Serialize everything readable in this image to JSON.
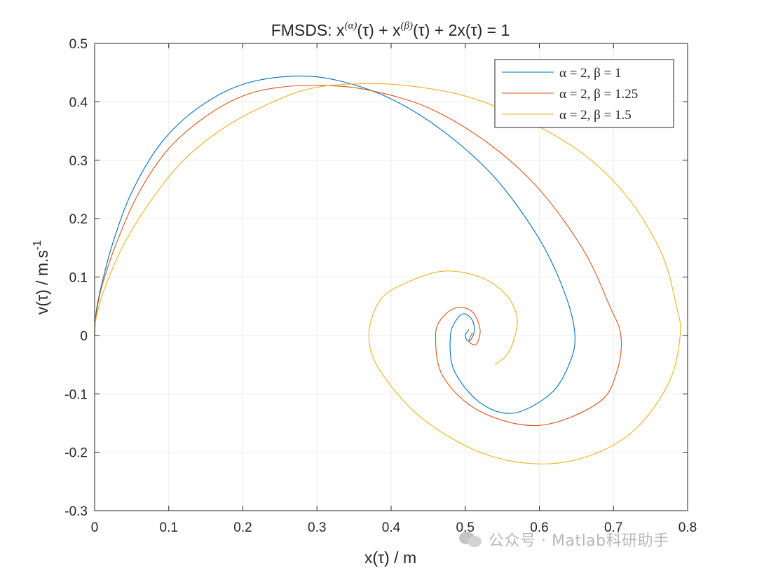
{
  "chart_data": {
    "type": "line",
    "title_parts": {
      "pre": "FMSDS: x",
      "sup1": "(α)",
      "mid1": "(τ) + x",
      "sup2": "(β)",
      "post": "(τ) + 2x(τ) = 1"
    },
    "xlabel": "x(τ) / m",
    "ylabel_main": "v(τ) / m.s",
    "ylabel_sup": "-1",
    "xlim": [
      0,
      0.8
    ],
    "ylim": [
      -0.3,
      0.5
    ],
    "xticks": [
      "0",
      "0.1",
      "0.2",
      "0.3",
      "0.4",
      "0.5",
      "0.6",
      "0.7",
      "0.8"
    ],
    "yticks": [
      "-0.3",
      "-0.2",
      "-0.1",
      "0",
      "0.1",
      "0.2",
      "0.3",
      "0.4",
      "0.5"
    ],
    "grid": true,
    "legend_position": "top-right",
    "series": [
      {
        "name": "α = 2, β = 1",
        "color": "#0072BD",
        "points": [
          [
            0,
            0
          ],
          [
            0.002,
            0.04
          ],
          [
            0.01,
            0.09
          ],
          [
            0.025,
            0.16
          ],
          [
            0.05,
            0.245
          ],
          [
            0.09,
            0.33
          ],
          [
            0.14,
            0.39
          ],
          [
            0.2,
            0.43
          ],
          [
            0.27,
            0.444
          ],
          [
            0.33,
            0.436
          ],
          [
            0.4,
            0.405
          ],
          [
            0.47,
            0.35
          ],
          [
            0.54,
            0.27
          ],
          [
            0.6,
            0.165
          ],
          [
            0.635,
            0.07
          ],
          [
            0.648,
            0.0
          ],
          [
            0.64,
            -0.05
          ],
          [
            0.615,
            -0.1
          ],
          [
            0.565,
            -0.133
          ],
          [
            0.52,
            -0.115
          ],
          [
            0.485,
            -0.06
          ],
          [
            0.48,
            0.0
          ],
          [
            0.49,
            0.03
          ],
          [
            0.5,
            0.037
          ],
          [
            0.51,
            0.025
          ],
          [
            0.512,
            0.005
          ],
          [
            0.505,
            -0.01
          ],
          [
            0.5,
            0.0
          ],
          [
            0.505,
            0.01
          ]
        ]
      },
      {
        "name": "α = 2, β = 1.25",
        "color": "#D95319",
        "points": [
          [
            0,
            0
          ],
          [
            0.002,
            0.035
          ],
          [
            0.01,
            0.085
          ],
          [
            0.03,
            0.16
          ],
          [
            0.06,
            0.245
          ],
          [
            0.1,
            0.32
          ],
          [
            0.15,
            0.375
          ],
          [
            0.2,
            0.41
          ],
          [
            0.25,
            0.425
          ],
          [
            0.31,
            0.428
          ],
          [
            0.37,
            0.42
          ],
          [
            0.45,
            0.39
          ],
          [
            0.53,
            0.33
          ],
          [
            0.6,
            0.25
          ],
          [
            0.66,
            0.145
          ],
          [
            0.695,
            0.05
          ],
          [
            0.71,
            0.0
          ],
          [
            0.705,
            -0.06
          ],
          [
            0.68,
            -0.115
          ],
          [
            0.6,
            -0.154
          ],
          [
            0.52,
            -0.13
          ],
          [
            0.47,
            -0.07
          ],
          [
            0.46,
            -0.0
          ],
          [
            0.47,
            0.032
          ],
          [
            0.49,
            0.048
          ],
          [
            0.51,
            0.04
          ],
          [
            0.52,
            0.01
          ],
          [
            0.515,
            -0.015
          ],
          [
            0.505,
            -0.01
          ],
          [
            0.51,
            0.005
          ]
        ]
      },
      {
        "name": "α = 2, β = 1.5",
        "color": "#EDB120",
        "points": [
          [
            0,
            0
          ],
          [
            0.002,
            0.03
          ],
          [
            0.012,
            0.075
          ],
          [
            0.035,
            0.145
          ],
          [
            0.07,
            0.22
          ],
          [
            0.12,
            0.3
          ],
          [
            0.18,
            0.36
          ],
          [
            0.25,
            0.405
          ],
          [
            0.3,
            0.425
          ],
          [
            0.36,
            0.431
          ],
          [
            0.42,
            0.428
          ],
          [
            0.5,
            0.41
          ],
          [
            0.58,
            0.37
          ],
          [
            0.66,
            0.31
          ],
          [
            0.72,
            0.235
          ],
          [
            0.765,
            0.14
          ],
          [
            0.785,
            0.05
          ],
          [
            0.79,
            0.0
          ],
          [
            0.775,
            -0.08
          ],
          [
            0.73,
            -0.16
          ],
          [
            0.67,
            -0.205
          ],
          [
            0.6,
            -0.22
          ],
          [
            0.52,
            -0.2
          ],
          [
            0.44,
            -0.14
          ],
          [
            0.385,
            -0.06
          ],
          [
            0.37,
            0.0
          ],
          [
            0.385,
            0.06
          ],
          [
            0.42,
            0.09
          ],
          [
            0.47,
            0.11
          ],
          [
            0.52,
            0.1
          ],
          [
            0.555,
            0.07
          ],
          [
            0.57,
            0.03
          ],
          [
            0.565,
            -0.01
          ],
          [
            0.555,
            -0.035
          ],
          [
            0.54,
            -0.05
          ]
        ]
      }
    ]
  },
  "watermark": {
    "text": "公众号 · Matlab科研助手",
    "icon": "wechat-icon"
  }
}
